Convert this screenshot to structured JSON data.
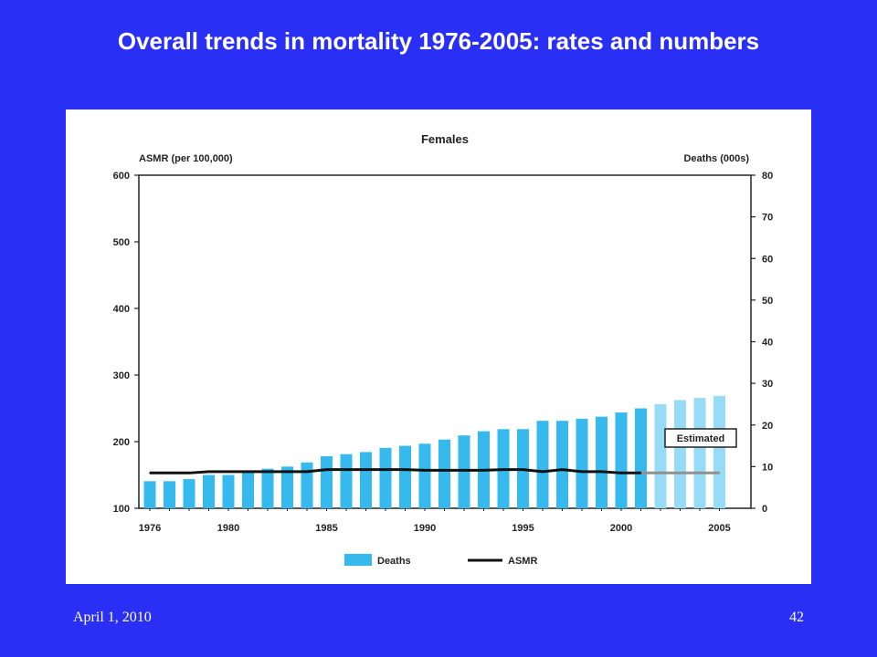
{
  "slide": {
    "title": "Overall trends in mortality 1976-2005: rates and numbers",
    "footer_date": "April 1, 2010",
    "page_number": "42"
  },
  "colors": {
    "background": "#2a2ff5",
    "deaths_actual": "#36b9ec",
    "deaths_estimated": "#96dcf6",
    "asmr_actual": "#111111",
    "asmr_estimated": "#909090"
  },
  "chart_data": {
    "type": "bar",
    "title": "Females",
    "left_axis_label": "ASMR (per 100,000)",
    "right_axis_label": "Deaths (000s)",
    "ylim_left": [
      100,
      600
    ],
    "yticks_left": [
      100,
      200,
      300,
      400,
      500,
      600
    ],
    "ylim_right": [
      0,
      80
    ],
    "yticks_right": [
      0,
      10,
      20,
      30,
      40,
      50,
      60,
      70,
      80
    ],
    "xtick_labels": [
      "1976",
      "1980",
      "1985",
      "1990",
      "1995",
      "2000",
      "2005"
    ],
    "years": [
      1976,
      1977,
      1978,
      1979,
      1980,
      1981,
      1982,
      1983,
      1984,
      1985,
      1986,
      1987,
      1988,
      1989,
      1990,
      1991,
      1992,
      1993,
      1994,
      1995,
      1996,
      1997,
      1998,
      1999,
      2000,
      2001,
      2002,
      2003,
      2004,
      2005
    ],
    "estimated_from_year": 2002,
    "estimated_label": "Estimated",
    "series": [
      {
        "name": "Deaths",
        "axis": "right",
        "kind": "bar",
        "values": [
          6.5,
          6.5,
          7,
          8,
          8,
          9,
          9.5,
          10,
          11,
          12.5,
          13,
          13.5,
          14.5,
          15,
          15.5,
          16.5,
          17.5,
          18.5,
          19,
          19,
          21,
          21,
          21.5,
          22,
          23,
          24,
          25,
          26,
          26.5,
          27
        ]
      },
      {
        "name": "ASMR",
        "axis": "left",
        "kind": "line",
        "values": [
          153,
          153,
          153,
          155,
          155,
          155,
          155,
          155,
          155,
          158,
          158,
          158,
          158,
          158,
          157,
          157,
          157,
          157,
          158,
          158,
          155,
          158,
          155,
          155,
          153,
          153,
          153,
          153,
          153,
          153
        ]
      }
    ],
    "legend": [
      "Deaths",
      "ASMR"
    ],
    "legend_position": "bottom-center"
  }
}
